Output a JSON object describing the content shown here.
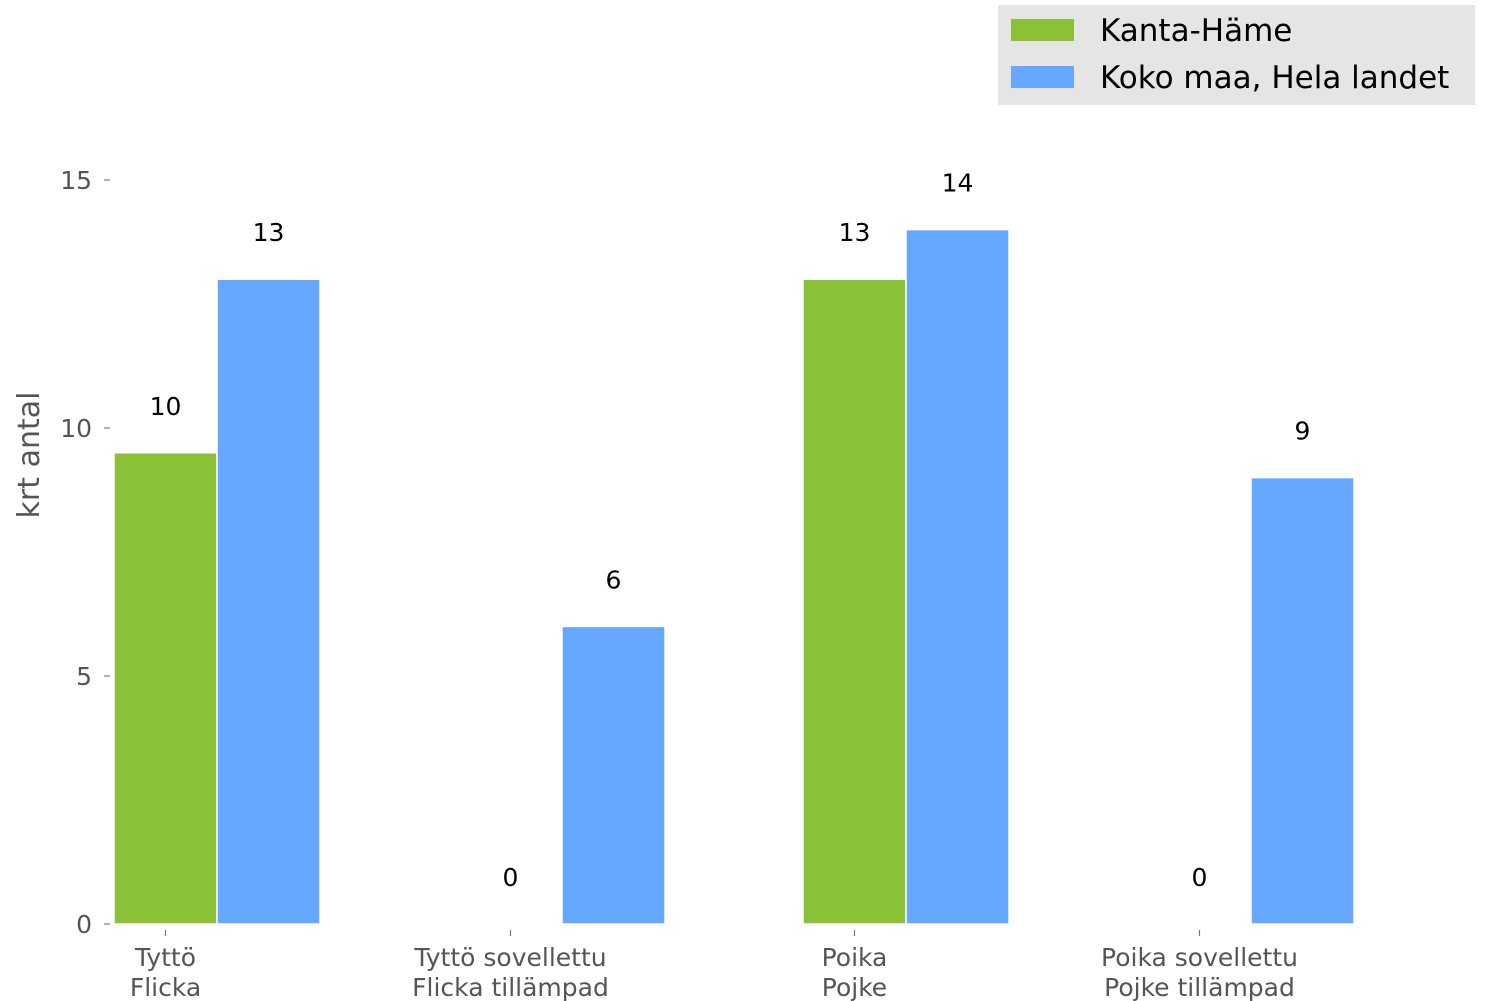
{
  "chart_data": {
    "type": "bar",
    "ylabel": "krt antal",
    "ylim": [
      0,
      15
    ],
    "yticks": [
      0,
      5,
      10,
      15
    ],
    "grid": false,
    "legend_position": "top-right",
    "categories": [
      [
        "Tyttö",
        "Flicka"
      ],
      [
        "Tyttö sovellettu",
        "Flicka tillämpad"
      ],
      [
        "Poika",
        "Pojke"
      ],
      [
        "Poika sovellettu",
        "Pojke tillämpad"
      ]
    ],
    "series": [
      {
        "name": "Kanta-Häme",
        "color": "#8bc136",
        "values": [
          9.5,
          0,
          13,
          0
        ],
        "labels": [
          "10",
          "0",
          "13",
          "0"
        ]
      },
      {
        "name": "Koko maa, Hela landet",
        "color": "#66a8ff",
        "values": [
          13,
          6,
          14,
          9
        ],
        "labels": [
          "13",
          "6",
          "14",
          "9"
        ]
      }
    ]
  }
}
